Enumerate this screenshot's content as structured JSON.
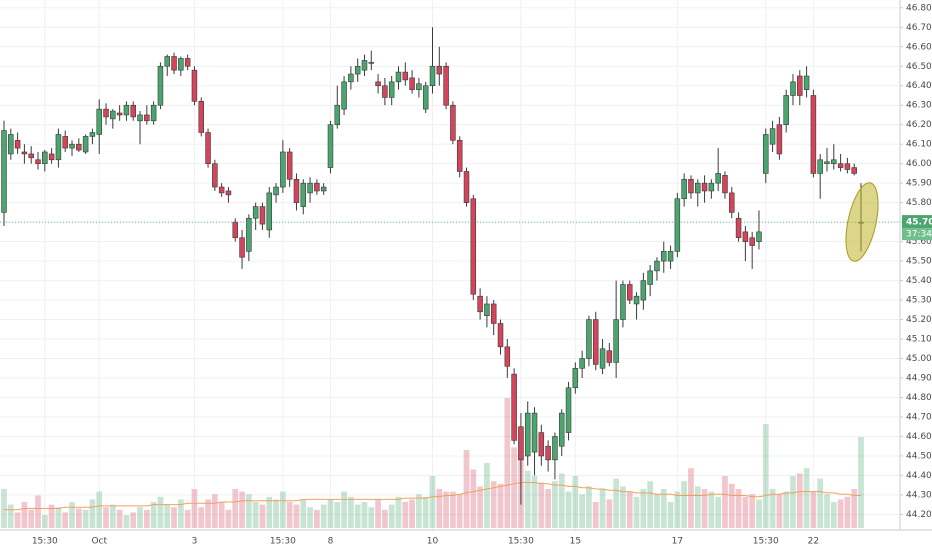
{
  "chart_data": {
    "type": "candlestick",
    "up_color": "#4aa56e",
    "down_color": "#d2455b",
    "ylim": [
      44.12,
      46.84
    ],
    "yticks": [
      {
        "value": 44.2,
        "label": "44.20"
      },
      {
        "value": 44.3,
        "label": "44.30"
      },
      {
        "value": 44.4,
        "label": "44.40"
      },
      {
        "value": 44.5,
        "label": "44.50"
      },
      {
        "value": 44.6,
        "label": "44.60"
      },
      {
        "value": 44.7,
        "label": "44.70"
      },
      {
        "value": 44.8,
        "label": "44.80"
      },
      {
        "value": 44.9,
        "label": "44.90"
      },
      {
        "value": 45.0,
        "label": "45.00"
      },
      {
        "value": 45.1,
        "label": "45.10"
      },
      {
        "value": 45.2,
        "label": "45.20"
      },
      {
        "value": 45.3,
        "label": "45.30"
      },
      {
        "value": 45.4,
        "label": "45.40"
      },
      {
        "value": 45.5,
        "label": "45.50"
      },
      {
        "value": 45.6,
        "label": "45.60"
      },
      {
        "value": 45.7,
        "label": "45.70"
      },
      {
        "value": 45.8,
        "label": "45.80"
      },
      {
        "value": 45.9,
        "label": "45.90"
      },
      {
        "value": 46.0,
        "label": "46.00"
      },
      {
        "value": 46.1,
        "label": "46.10"
      },
      {
        "value": 46.2,
        "label": "46.20"
      },
      {
        "value": 46.3,
        "label": "46.30"
      },
      {
        "value": 46.4,
        "label": "46.40"
      },
      {
        "value": 46.5,
        "label": "46.50"
      },
      {
        "value": 46.6,
        "label": "46.60"
      },
      {
        "value": 46.7,
        "label": "46.70"
      },
      {
        "value": 46.8,
        "label": "46.80"
      }
    ],
    "grid": true,
    "current_price": {
      "value": 45.7,
      "label": "45.70"
    },
    "countdown": "37:34",
    "categories": [
      null,
      null,
      null,
      null,
      null,
      null,
      "15:30",
      null,
      null,
      null,
      null,
      null,
      null,
      null,
      "Oct",
      null,
      null,
      null,
      null,
      null,
      null,
      null,
      null,
      null,
      null,
      null,
      null,
      null,
      "3",
      null,
      null,
      null,
      null,
      null,
      null,
      null,
      null,
      null,
      null,
      null,
      null,
      "15:30",
      null,
      null,
      null,
      null,
      null,
      null,
      "8",
      null,
      null,
      null,
      null,
      null,
      null,
      null,
      null,
      null,
      null,
      null,
      null,
      null,
      null,
      "10",
      null,
      null,
      null,
      null,
      null,
      null,
      null,
      null,
      null,
      null,
      null,
      null,
      "15:30",
      null,
      null,
      null,
      null,
      null,
      null,
      null,
      "15",
      null,
      null,
      null,
      null,
      null,
      null,
      null,
      null,
      null,
      null,
      null,
      null,
      null,
      null,
      "17",
      null,
      null,
      null,
      null,
      null,
      null,
      null,
      null,
      null,
      null,
      null,
      null,
      "15:30",
      null,
      null,
      null,
      null,
      null,
      null,
      "22",
      null,
      null,
      null,
      null,
      null,
      null,
      null
    ],
    "ohlc": [
      [
        45.75,
        46.22,
        45.68,
        46.17
      ],
      [
        46.05,
        46.18,
        46.02,
        46.15
      ],
      [
        46.12,
        46.16,
        46.05,
        46.08
      ],
      [
        46.06,
        46.1,
        46.0,
        46.05
      ],
      [
        46.05,
        46.09,
        46.0,
        46.03
      ],
      [
        46.02,
        46.06,
        45.97,
        46.0
      ],
      [
        46.0,
        46.07,
        45.96,
        46.06
      ],
      [
        46.05,
        46.08,
        46.0,
        46.02
      ],
      [
        46.02,
        46.18,
        45.98,
        46.15
      ],
      [
        46.14,
        46.17,
        46.06,
        46.08
      ],
      [
        46.08,
        46.12,
        46.04,
        46.1
      ],
      [
        46.1,
        46.13,
        46.06,
        46.07
      ],
      [
        46.06,
        46.15,
        46.05,
        46.14
      ],
      [
        46.14,
        46.18,
        46.1,
        46.16
      ],
      [
        46.15,
        46.33,
        46.05,
        46.28
      ],
      [
        46.28,
        46.31,
        46.2,
        46.24
      ],
      [
        46.23,
        46.28,
        46.18,
        46.27
      ],
      [
        46.26,
        46.3,
        46.22,
        46.25
      ],
      [
        46.25,
        46.32,
        46.22,
        46.3
      ],
      [
        46.3,
        46.32,
        46.22,
        46.24
      ],
      [
        46.22,
        46.27,
        46.1,
        46.25
      ],
      [
        46.25,
        46.3,
        46.2,
        46.22
      ],
      [
        46.22,
        46.32,
        46.2,
        46.3
      ],
      [
        46.3,
        46.52,
        46.28,
        46.5
      ],
      [
        46.5,
        46.56,
        46.45,
        46.55
      ],
      [
        46.55,
        46.57,
        46.46,
        46.48
      ],
      [
        46.48,
        46.55,
        46.45,
        46.54
      ],
      [
        46.54,
        46.56,
        46.48,
        46.5
      ],
      [
        46.48,
        46.5,
        46.3,
        46.32
      ],
      [
        46.32,
        46.34,
        46.14,
        46.16
      ],
      [
        46.16,
        46.18,
        45.98,
        46.0
      ],
      [
        46.0,
        46.02,
        45.86,
        45.88
      ],
      [
        45.88,
        45.9,
        45.83,
        45.85
      ],
      [
        45.86,
        45.88,
        45.8,
        45.84
      ],
      [
        45.7,
        45.72,
        45.6,
        45.62
      ],
      [
        45.62,
        45.66,
        45.46,
        45.52
      ],
      [
        45.55,
        45.74,
        45.5,
        45.72
      ],
      [
        45.72,
        45.8,
        45.66,
        45.78
      ],
      [
        45.78,
        45.8,
        45.66,
        45.69
      ],
      [
        45.66,
        45.88,
        45.62,
        45.85
      ],
      [
        45.84,
        45.9,
        45.8,
        45.88
      ],
      [
        45.88,
        46.12,
        45.85,
        46.06
      ],
      [
        46.06,
        46.08,
        45.88,
        45.92
      ],
      [
        45.92,
        45.95,
        45.76,
        45.8
      ],
      [
        45.78,
        45.92,
        45.74,
        45.9
      ],
      [
        45.85,
        45.93,
        45.8,
        45.9
      ],
      [
        45.9,
        45.92,
        45.84,
        45.86
      ],
      [
        45.86,
        45.9,
        45.84,
        45.88
      ],
      [
        45.98,
        46.22,
        45.95,
        46.2
      ],
      [
        46.2,
        46.4,
        46.18,
        46.3
      ],
      [
        46.28,
        46.45,
        46.25,
        46.42
      ],
      [
        46.42,
        46.5,
        46.38,
        46.46
      ],
      [
        46.46,
        46.54,
        46.42,
        46.5
      ],
      [
        46.48,
        46.56,
        46.45,
        46.53
      ],
      [
        46.52,
        46.58,
        46.48,
        46.52
      ],
      [
        46.42,
        46.46,
        46.36,
        46.4
      ],
      [
        46.4,
        46.44,
        46.3,
        46.34
      ],
      [
        46.34,
        46.45,
        46.3,
        46.42
      ],
      [
        46.42,
        46.5,
        46.38,
        46.47
      ],
      [
        46.47,
        46.52,
        46.4,
        46.43
      ],
      [
        46.44,
        46.48,
        46.36,
        46.38
      ],
      [
        46.38,
        46.44,
        46.34,
        46.41
      ],
      [
        46.28,
        46.42,
        46.26,
        46.4
      ],
      [
        46.4,
        46.7,
        46.36,
        46.5
      ],
      [
        46.5,
        46.6,
        46.4,
        46.46
      ],
      [
        46.5,
        46.52,
        46.28,
        46.3
      ],
      [
        46.3,
        46.32,
        46.1,
        46.12
      ],
      [
        46.12,
        46.14,
        45.93,
        45.96
      ],
      [
        45.96,
        45.98,
        45.78,
        45.8
      ],
      [
        45.82,
        45.84,
        45.3,
        45.33
      ],
      [
        45.32,
        45.36,
        45.2,
        45.24
      ],
      [
        45.22,
        45.32,
        45.16,
        45.28
      ],
      [
        45.28,
        45.3,
        45.12,
        45.18
      ],
      [
        45.18,
        45.2,
        45.02,
        45.06
      ],
      [
        45.06,
        45.1,
        44.9,
        44.96
      ],
      [
        44.92,
        44.95,
        44.56,
        44.58
      ],
      [
        44.65,
        44.72,
        44.25,
        44.48
      ],
      [
        44.5,
        44.78,
        44.45,
        44.72
      ],
      [
        44.52,
        44.75,
        44.4,
        44.72
      ],
      [
        44.62,
        44.66,
        44.45,
        44.5
      ],
      [
        44.55,
        44.58,
        44.42,
        44.48
      ],
      [
        44.48,
        44.62,
        44.38,
        44.6
      ],
      [
        44.55,
        44.74,
        44.5,
        44.72
      ],
      [
        44.62,
        44.88,
        44.58,
        44.85
      ],
      [
        44.85,
        44.98,
        44.82,
        44.95
      ],
      [
        44.95,
        45.04,
        44.9,
        45.0
      ],
      [
        45.0,
        45.22,
        44.96,
        45.2
      ],
      [
        45.2,
        45.24,
        44.94,
        44.97
      ],
      [
        44.95,
        45.1,
        44.92,
        45.05
      ],
      [
        45.04,
        45.08,
        44.96,
        44.98
      ],
      [
        44.98,
        45.4,
        44.9,
        45.2
      ],
      [
        45.2,
        45.4,
        45.16,
        45.38
      ],
      [
        45.38,
        45.4,
        45.28,
        45.3
      ],
      [
        45.28,
        45.34,
        45.2,
        45.32
      ],
      [
        45.3,
        45.44,
        45.25,
        45.4
      ],
      [
        45.38,
        45.48,
        45.32,
        45.45
      ],
      [
        45.45,
        45.52,
        45.4,
        45.5
      ],
      [
        45.5,
        45.6,
        45.44,
        45.55
      ],
      [
        45.5,
        45.58,
        45.46,
        45.55
      ],
      [
        45.55,
        45.85,
        45.52,
        45.82
      ],
      [
        45.82,
        45.95,
        45.78,
        45.92
      ],
      [
        45.92,
        45.94,
        45.82,
        45.85
      ],
      [
        45.85,
        45.92,
        45.78,
        45.9
      ],
      [
        45.9,
        45.94,
        45.8,
        45.86
      ],
      [
        45.86,
        45.92,
        45.82,
        45.9
      ],
      [
        45.9,
        46.08,
        45.86,
        45.95
      ],
      [
        45.94,
        45.96,
        45.82,
        45.85
      ],
      [
        45.85,
        45.88,
        45.72,
        45.75
      ],
      [
        45.72,
        45.75,
        45.6,
        45.62
      ],
      [
        45.65,
        45.68,
        45.5,
        45.6
      ],
      [
        45.62,
        45.65,
        45.46,
        45.58
      ],
      [
        45.6,
        45.76,
        45.56,
        45.65
      ],
      [
        45.95,
        46.18,
        45.9,
        46.15
      ],
      [
        46.1,
        46.22,
        46.06,
        46.18
      ],
      [
        46.2,
        46.24,
        46.02,
        46.05
      ],
      [
        46.2,
        46.38,
        46.16,
        46.35
      ],
      [
        46.35,
        46.46,
        46.3,
        46.42
      ],
      [
        46.45,
        46.48,
        46.3,
        46.35
      ],
      [
        46.38,
        46.5,
        46.34,
        46.45
      ],
      [
        46.35,
        46.38,
        45.93,
        45.95
      ],
      [
        45.95,
        46.05,
        45.82,
        46.02
      ],
      [
        46.0,
        46.08,
        45.96,
        46.01
      ],
      [
        46.0,
        46.1,
        45.97,
        46.02
      ],
      [
        46.0,
        46.05,
        45.96,
        45.98
      ],
      [
        46.0,
        46.03,
        45.95,
        45.97
      ],
      [
        45.98,
        46.0,
        45.94,
        45.95
      ],
      [
        45.7,
        45.9,
        45.55,
        45.7
      ]
    ],
    "volume": [
      30,
      18,
      12,
      20,
      14,
      25,
      10,
      18,
      16,
      12,
      20,
      15,
      14,
      22,
      28,
      16,
      18,
      14,
      10,
      12,
      16,
      14,
      20,
      24,
      18,
      16,
      22,
      14,
      30,
      16,
      22,
      26,
      20,
      14,
      30,
      28,
      26,
      20,
      18,
      24,
      22,
      28,
      20,
      18,
      22,
      16,
      14,
      18,
      22,
      20,
      28,
      24,
      18,
      20,
      16,
      22,
      14,
      18,
      24,
      20,
      22,
      26,
      24,
      40,
      30,
      28,
      28,
      26,
      60,
      45,
      32,
      50,
      36,
      34,
      100,
      62,
      75,
      44,
      40,
      35,
      30,
      36,
      42,
      28,
      40,
      26,
      32,
      20,
      30,
      22,
      38,
      32,
      28,
      24,
      30,
      36,
      26,
      30,
      20,
      28,
      36,
      46,
      32,
      30,
      28,
      24,
      40,
      34,
      30,
      24,
      26,
      22,
      80,
      30,
      26,
      28,
      40,
      42,
      46,
      28,
      38,
      26,
      20,
      22,
      24,
      30,
      70
    ],
    "volume_ma": [
      14,
      14,
      14,
      15,
      15,
      15,
      15,
      15,
      15,
      16,
      16,
      16,
      16,
      16,
      17,
      17,
      17,
      17,
      17,
      17,
      17,
      17,
      18,
      18,
      18,
      18,
      18,
      19,
      19,
      19,
      19,
      19,
      20,
      20,
      20,
      21,
      21,
      21,
      21,
      21,
      21,
      21,
      21,
      21,
      22,
      22,
      22,
      22,
      22,
      22,
      22,
      22,
      22,
      22,
      22,
      22,
      22,
      22,
      22,
      23,
      23,
      23,
      23,
      24,
      24,
      25,
      25,
      26,
      27,
      28,
      29,
      30,
      31,
      32,
      33,
      34,
      35,
      35,
      35,
      34,
      34,
      33,
      33,
      32,
      32,
      31,
      31,
      30,
      30,
      29,
      29,
      28,
      28,
      27,
      27,
      27,
      26,
      26,
      26,
      25,
      25,
      25,
      25,
      25,
      26,
      26,
      26,
      25,
      25,
      25,
      24,
      24,
      25,
      26,
      26,
      27,
      27,
      28,
      28,
      28,
      28,
      27,
      27,
      26,
      26,
      25,
      25
    ],
    "volume_ma_color": "#f0a060"
  }
}
